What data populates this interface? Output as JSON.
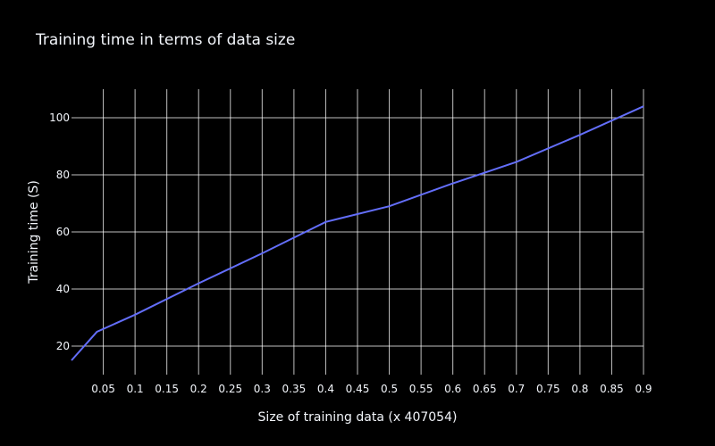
{
  "chart_data": {
    "type": "line",
    "title": "Training time in terms of data size",
    "xlabel": "Size of training data (x 407054)",
    "ylabel": "Training  time (S)",
    "xlim": [
      0.0,
      0.9
    ],
    "ylim": [
      10,
      110
    ],
    "x_ticks": [
      0.05,
      0.1,
      0.15,
      0.2,
      0.25,
      0.3,
      0.35,
      0.4,
      0.45,
      0.5,
      0.55,
      0.6,
      0.65,
      0.7,
      0.75,
      0.8,
      0.85,
      0.9
    ],
    "x_tick_labels": [
      "0.05",
      "0.1",
      "0.15",
      "0.2",
      "0.25",
      "0.3",
      "0.35",
      "0.4",
      "0.45",
      "0.5",
      "0.55",
      "0.6",
      "0.65",
      "0.7",
      "0.75",
      "0.8",
      "0.85",
      "0.9"
    ],
    "y_ticks": [
      20,
      40,
      60,
      80,
      100
    ],
    "y_tick_labels": [
      "20",
      "40",
      "60",
      "80",
      "100"
    ],
    "grid": true,
    "series": [
      {
        "color": "#636efa",
        "x": [
          0.0,
          0.04,
          0.1,
          0.2,
          0.3,
          0.4,
          0.5,
          0.6,
          0.7,
          0.8,
          0.9
        ],
        "y": [
          15,
          25,
          31,
          42,
          52.5,
          63.5,
          69,
          77,
          84.5,
          94,
          104
        ]
      }
    ]
  }
}
